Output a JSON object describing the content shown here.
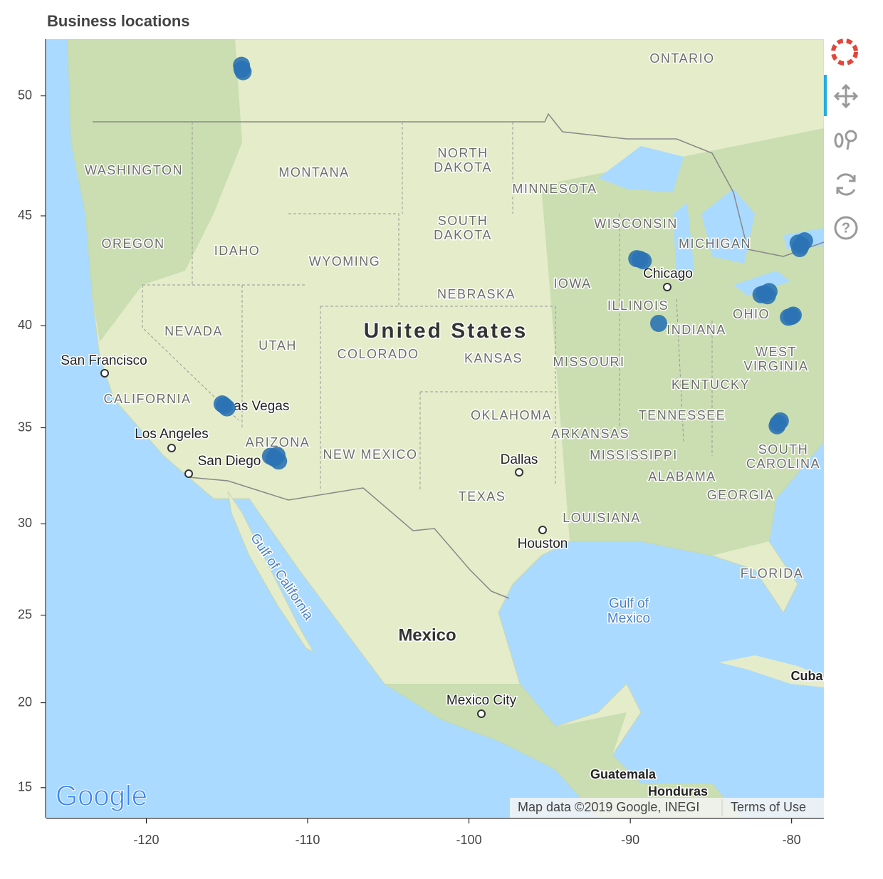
{
  "chart_data": {
    "type": "scatter",
    "title": "Business locations",
    "x": [
      -114.07,
      -114.1,
      -114.0,
      -89.4,
      -89.6,
      -89.2,
      -88.24,
      -115.17,
      -115.0,
      -115.3,
      -112.07,
      -111.8,
      -112.3,
      -111.9,
      -79.4,
      -79.6,
      -79.2,
      -79.5,
      -81.7,
      -81.5,
      -81.9,
      -81.4,
      -80.0,
      -80.2,
      -79.9,
      -80.84,
      -80.9,
      -80.7
    ],
    "y": [
      51.05,
      51.2,
      50.95,
      43.07,
      43.1,
      43.0,
      40.11,
      36.12,
      36.0,
      36.2,
      33.45,
      33.3,
      33.55,
      33.6,
      43.7,
      43.8,
      43.9,
      43.55,
      41.5,
      41.4,
      41.45,
      41.6,
      40.44,
      40.4,
      40.5,
      35.23,
      35.1,
      35.35
    ],
    "color": "#2b73b4",
    "xlim": [
      -126.2,
      -78.0
    ],
    "ylim": [
      13.2,
      52.2
    ],
    "y_scale": "mercator",
    "xticks": [
      -120,
      -110,
      -100,
      -90,
      -80
    ],
    "yticks": [
      15,
      20,
      25,
      30,
      35,
      40,
      45,
      50
    ],
    "map_labels": [
      "ONTARIO",
      "WASHINGTON",
      "MONTANA",
      "NORTH",
      "DAKOTA",
      "MINNESOTA",
      "SOUTH",
      "DAKOTA",
      "WISCONSIN",
      "MICHIGAN",
      "OREGON",
      "IDAHO",
      "WYOMING",
      "Chicago",
      "IOWA",
      "NEBRASKA",
      "ILLINOIS",
      "OHIO",
      "NEVADA",
      "United States",
      "INDIANA",
      "UTAH",
      "COLORADO",
      "KANSAS",
      "MISSOURI",
      "WEST",
      "VIRGINIA",
      "San Francisco",
      "KENTUCKY",
      "CALIFORNIA",
      "Las Vegas",
      "OKLAHOMA",
      "TENNESSEE",
      "ARKANSAS",
      "Los Angeles",
      "ARIZONA",
      "NEW MEXICO",
      "MISSISSIPPI",
      "SOUTH",
      "CAROLINA",
      "San Diego",
      "Dallas",
      "ALABAMA",
      "TEXAS",
      "GEORGIA",
      "LOUISIANA",
      "Houston",
      "FLORIDA",
      "Gulf of",
      "Mexico",
      "Gulf of California",
      "Mexico",
      "Cuba",
      "Mexico City",
      "Guatemala",
      "Honduras"
    ],
    "logo": "Google",
    "attribution": "Map data ©2019 Google, INEGI",
    "terms": "Terms of Use"
  }
}
